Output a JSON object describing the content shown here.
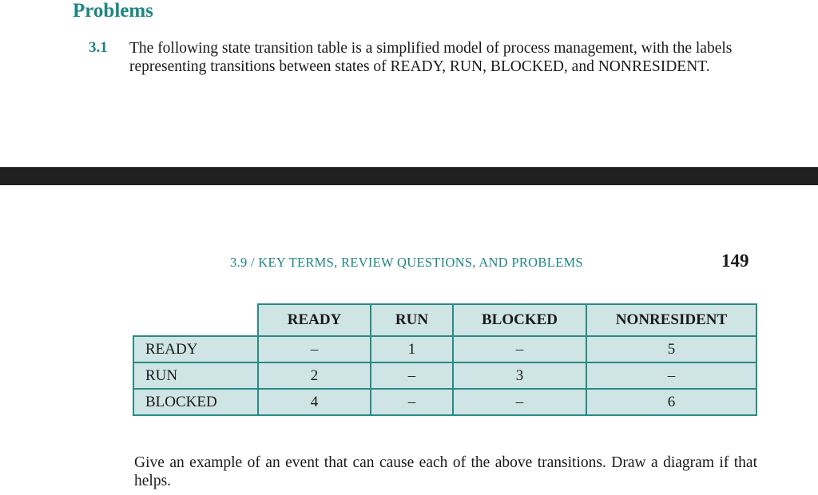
{
  "section_heading": "Problems",
  "problem": {
    "number": "3.1",
    "text": "The following state transition table is a simplified model of process management, with the labels representing transitions between states of READY, RUN, BLOCKED, and NONRESIDENT."
  },
  "running_header": {
    "text": "3.9 / KEY TERMS, REVIEW QUESTIONS, AND PROBLEMS",
    "page_number": "149"
  },
  "table": {
    "columns": [
      "READY",
      "RUN",
      "BLOCKED",
      "NONRESIDENT"
    ],
    "rows": [
      {
        "label": "READY",
        "cells": [
          "–",
          "1",
          "–",
          "5"
        ]
      },
      {
        "label": "RUN",
        "cells": [
          "2",
          "–",
          "3",
          "–"
        ]
      },
      {
        "label": "BLOCKED",
        "cells": [
          "4",
          "–",
          "–",
          "6"
        ]
      }
    ]
  },
  "prompt": "Give an example of an event that can cause each of the above transitions. Draw a diagram if that helps.",
  "colors": {
    "accent": "#1e8680",
    "table_fill": "#cfe4e4",
    "table_border": "#2a8a85",
    "dark_bar": "#202020"
  }
}
